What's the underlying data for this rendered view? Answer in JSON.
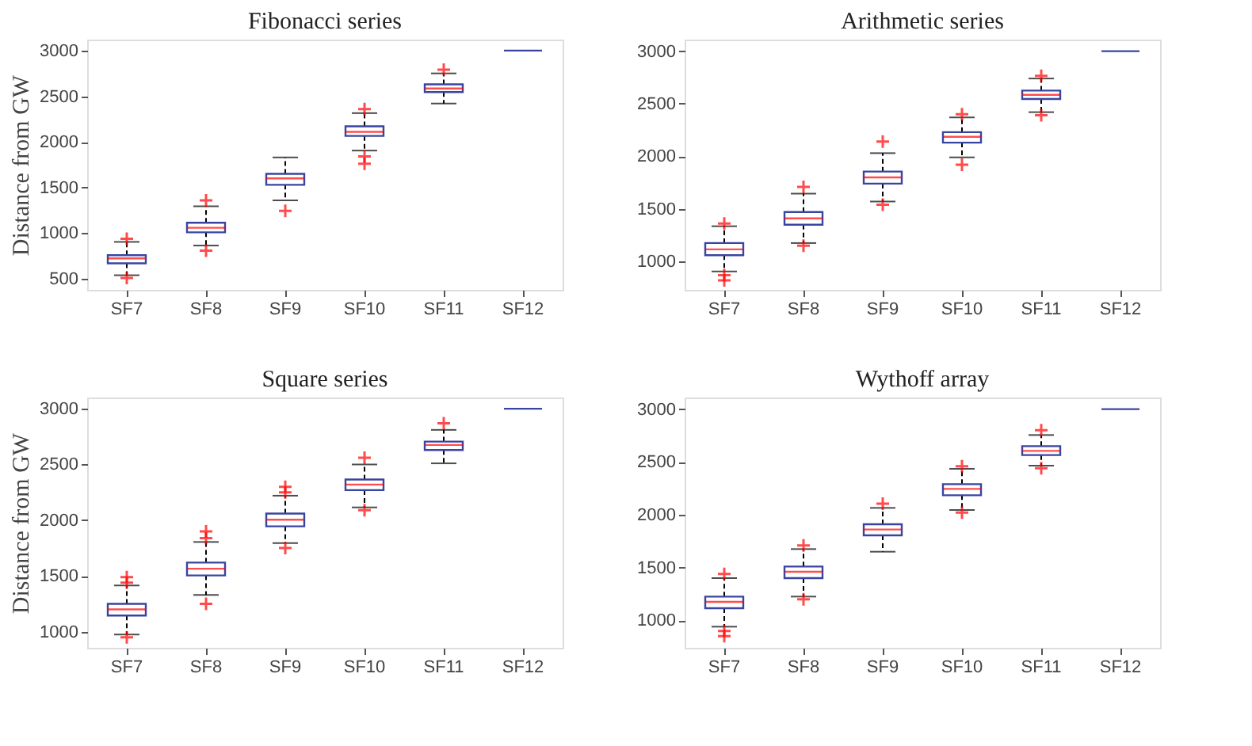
{
  "chart_data": [
    {
      "type": "box",
      "title": "Fibonacci series",
      "ylabel": "Distance from GW",
      "categories": [
        "SF7",
        "SF8",
        "SF9",
        "SF10",
        "SF11",
        "SF12"
      ],
      "ylim": [
        380,
        3120
      ],
      "yticks": [
        500,
        1000,
        1500,
        2000,
        2500,
        3000
      ],
      "grid": false,
      "series": [
        {
          "color": "#3845a0",
          "boxes": [
            {
              "low": 540,
              "q1": 670,
              "median": 725,
              "q3": 760,
              "high": 905,
              "outliers": [
                940,
                510
              ]
            },
            {
              "low": 865,
              "q1": 1010,
              "median": 1060,
              "q3": 1115,
              "high": 1295,
              "outliers": [
                1360,
                810
              ]
            },
            {
              "low": 1360,
              "q1": 1530,
              "median": 1600,
              "q3": 1650,
              "high": 1830,
              "outliers": [
                1245
              ]
            },
            {
              "low": 1905,
              "q1": 2065,
              "median": 2110,
              "q3": 2170,
              "high": 2315,
              "outliers": [
                2360,
                1840,
                1760
              ]
            },
            {
              "low": 2420,
              "q1": 2545,
              "median": 2585,
              "q3": 2630,
              "high": 2750,
              "outliers": [
                2790
              ]
            },
            {
              "low": 3000,
              "q1": 3000,
              "median": 3000,
              "q3": 3000,
              "high": 3000
            }
          ]
        }
      ]
    },
    {
      "type": "box",
      "title": "Arithmetic series",
      "categories": [
        "SF7",
        "SF8",
        "SF9",
        "SF10",
        "SF11",
        "SF12"
      ],
      "ylim": [
        730,
        3110
      ],
      "yticks": [
        1000,
        1500,
        2000,
        2500,
        3000
      ],
      "grid": false,
      "series": [
        {
          "color": "#3845a0",
          "boxes": [
            {
              "low": 905,
              "q1": 1060,
              "median": 1115,
              "q3": 1175,
              "high": 1335,
              "outliers": [
                1360,
                870,
                820
              ]
            },
            {
              "low": 1175,
              "q1": 1350,
              "median": 1410,
              "q3": 1470,
              "high": 1645,
              "outliers": [
                1710,
                1150
              ]
            },
            {
              "low": 1570,
              "q1": 1740,
              "median": 1800,
              "q3": 1855,
              "high": 2030,
              "outliers": [
                2140,
                1540
              ]
            },
            {
              "low": 1990,
              "q1": 2130,
              "median": 2185,
              "q3": 2230,
              "high": 2370,
              "outliers": [
                2400,
                1920
              ]
            },
            {
              "low": 2420,
              "q1": 2545,
              "median": 2585,
              "q3": 2625,
              "high": 2740,
              "outliers": [
                2765,
                2390
              ]
            },
            {
              "low": 3000,
              "q1": 3000,
              "median": 3000,
              "q3": 3000,
              "high": 3000
            }
          ]
        }
      ]
    },
    {
      "type": "box",
      "title": "Square series",
      "ylabel": "Distance from GW",
      "categories": [
        "SF7",
        "SF8",
        "SF9",
        "SF10",
        "SF11",
        "SF12"
      ],
      "ylim": [
        856,
        3100
      ],
      "yticks": [
        1000,
        1500,
        2000,
        2500,
        3000
      ],
      "grid": false,
      "series": [
        {
          "color": "#3845a0",
          "boxes": [
            {
              "low": 975,
              "q1": 1145,
              "median": 1200,
              "q3": 1250,
              "high": 1415,
              "outliers": [
                1490,
                1440,
                950
              ]
            },
            {
              "low": 1330,
              "q1": 1505,
              "median": 1565,
              "q3": 1620,
              "high": 1805,
              "outliers": [
                1900,
                1840,
                1250
              ]
            },
            {
              "low": 1795,
              "q1": 1945,
              "median": 2005,
              "q3": 2060,
              "high": 2220,
              "outliers": [
                2300,
                2250,
                1750
              ]
            },
            {
              "low": 2115,
              "q1": 2270,
              "median": 2320,
              "q3": 2365,
              "high": 2500,
              "outliers": [
                2560,
                2090
              ]
            },
            {
              "low": 2510,
              "q1": 2630,
              "median": 2675,
              "q3": 2705,
              "high": 2810,
              "outliers": [
                2870
              ]
            },
            {
              "low": 3000,
              "q1": 3000,
              "median": 3000,
              "q3": 3000,
              "high": 3000
            }
          ]
        }
      ]
    },
    {
      "type": "box",
      "title": "Wythoff array",
      "categories": [
        "SF7",
        "SF8",
        "SF9",
        "SF10",
        "SF11",
        "SF12"
      ],
      "ylim": [
        740,
        3110
      ],
      "yticks": [
        1000,
        1500,
        2000,
        2500,
        3000
      ],
      "grid": false,
      "series": [
        {
          "color": "#3845a0",
          "boxes": [
            {
              "low": 940,
              "q1": 1115,
              "median": 1175,
              "q3": 1225,
              "high": 1400,
              "outliers": [
                1440,
                900,
                850
              ]
            },
            {
              "low": 1225,
              "q1": 1400,
              "median": 1460,
              "q3": 1510,
              "high": 1675,
              "outliers": [
                1710,
                1200
              ]
            },
            {
              "low": 1650,
              "q1": 1805,
              "median": 1860,
              "q3": 1910,
              "high": 2065,
              "outliers": [
                2105
              ]
            },
            {
              "low": 2045,
              "q1": 2185,
              "median": 2245,
              "q3": 2290,
              "high": 2435,
              "outliers": [
                2460,
                2020
              ]
            },
            {
              "low": 2465,
              "q1": 2565,
              "median": 2605,
              "q3": 2650,
              "high": 2755,
              "outliers": [
                2800,
                2440
              ]
            },
            {
              "low": 3000,
              "q1": 3000,
              "median": 3000,
              "q3": 3000,
              "high": 3000
            }
          ]
        }
      ]
    }
  ]
}
